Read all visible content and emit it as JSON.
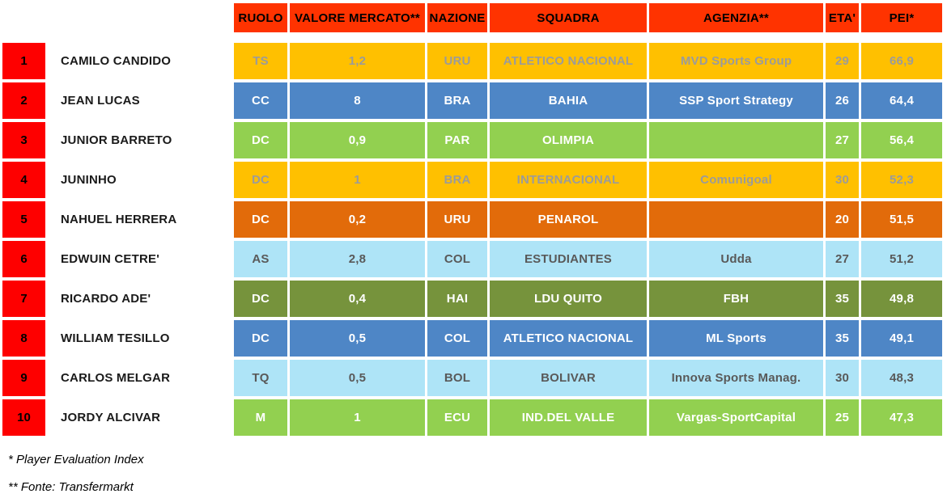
{
  "colors": {
    "header_bg": "#FF3300",
    "header_fg": "#000000",
    "rank_bg": "#FE0000",
    "rank_fg": "#000000",
    "amber": "#FFC000",
    "blue": "#4E86C6",
    "green": "#92D050",
    "dark_orange": "#E26B0A",
    "light_cyan": "#AEE4F7",
    "olive": "#76933C",
    "gray_text_light": "#9B9B9B",
    "gray_text_dark": "#595959",
    "white_text": "#FFFFFF"
  },
  "chart_data": {
    "type": "table",
    "title": "Player ranking table by PEI (Player Evaluation Index)",
    "columns": [
      "RUOLO",
      "VALORE MERCATO**",
      "NAZIONE",
      "SQUADRA",
      "AGENZIA**",
      "ETA'",
      "PEI*"
    ],
    "rows": [
      {
        "rank": "1",
        "name": "CAMILO CANDIDO",
        "ruolo": "TS",
        "valore": "1,2",
        "nazione": "URU",
        "squadra": "ATLETICO NACIONAL",
        "agenzia": "MVD Sports Group",
        "eta": "29",
        "pei": "66,9",
        "bg": "#FFC000",
        "fg": "#9B9B9B"
      },
      {
        "rank": "2",
        "name": "JEAN LUCAS",
        "ruolo": "CC",
        "valore": "8",
        "nazione": "BRA",
        "squadra": "BAHIA",
        "agenzia": "SSP Sport Strategy",
        "eta": "26",
        "pei": "64,4",
        "bg": "#4E86C6",
        "fg": "#FFFFFF"
      },
      {
        "rank": "3",
        "name": "JUNIOR BARRETO",
        "ruolo": "DC",
        "valore": "0,9",
        "nazione": "PAR",
        "squadra": "OLIMPIA",
        "agenzia": "",
        "eta": "27",
        "pei": "56,4",
        "bg": "#92D050",
        "fg": "#FFFFFF"
      },
      {
        "rank": "4",
        "name": "JUNINHO",
        "ruolo": "DC",
        "valore": "1",
        "nazione": "BRA",
        "squadra": "INTERNACIONAL",
        "agenzia": "Comunigoal",
        "eta": "30",
        "pei": "52,3",
        "bg": "#FFC000",
        "fg": "#9B9B9B"
      },
      {
        "rank": "5",
        "name": "NAHUEL HERRERA",
        "ruolo": "DC",
        "valore": "0,2",
        "nazione": "URU",
        "squadra": "PENAROL",
        "agenzia": "",
        "eta": "20",
        "pei": "51,5",
        "bg": "#E26B0A",
        "fg": "#FFFFFF"
      },
      {
        "rank": "6",
        "name": "EDWUIN CETRE'",
        "ruolo": "AS",
        "valore": "2,8",
        "nazione": "COL",
        "squadra": "ESTUDIANTES",
        "agenzia": "Udda",
        "eta": "27",
        "pei": "51,2",
        "bg": "#AEE4F7",
        "fg": "#595959"
      },
      {
        "rank": "7",
        "name": "RICARDO ADE'",
        "ruolo": "DC",
        "valore": "0,4",
        "nazione": "HAI",
        "squadra": "LDU QUITO",
        "agenzia": "FBH",
        "eta": "35",
        "pei": "49,8",
        "bg": "#76933C",
        "fg": "#FFFFFF"
      },
      {
        "rank": "8",
        "name": "WILLIAM TESILLO",
        "ruolo": "DC",
        "valore": "0,5",
        "nazione": "COL",
        "squadra": "ATLETICO NACIONAL",
        "agenzia": "ML Sports",
        "eta": "35",
        "pei": "49,1",
        "bg": "#4E86C6",
        "fg": "#FFFFFF"
      },
      {
        "rank": "9",
        "name": "CARLOS MELGAR",
        "ruolo": "TQ",
        "valore": "0,5",
        "nazione": "BOL",
        "squadra": "BOLIVAR",
        "agenzia": "Innova Sports Manag.",
        "eta": "30",
        "pei": "48,3",
        "bg": "#AEE4F7",
        "fg": "#595959"
      },
      {
        "rank": "10",
        "name": "JORDY ALCIVAR",
        "ruolo": "M",
        "valore": "1",
        "nazione": "ECU",
        "squadra": "IND.DEL VALLE",
        "agenzia": "Vargas-SportCapital",
        "eta": "25",
        "pei": "47,3",
        "bg": "#92D050",
        "fg": "#FFFFFF"
      }
    ]
  },
  "footnotes": {
    "pei": "* Player Evaluation Index",
    "fonte": "** Fonte: Transfermarkt"
  }
}
